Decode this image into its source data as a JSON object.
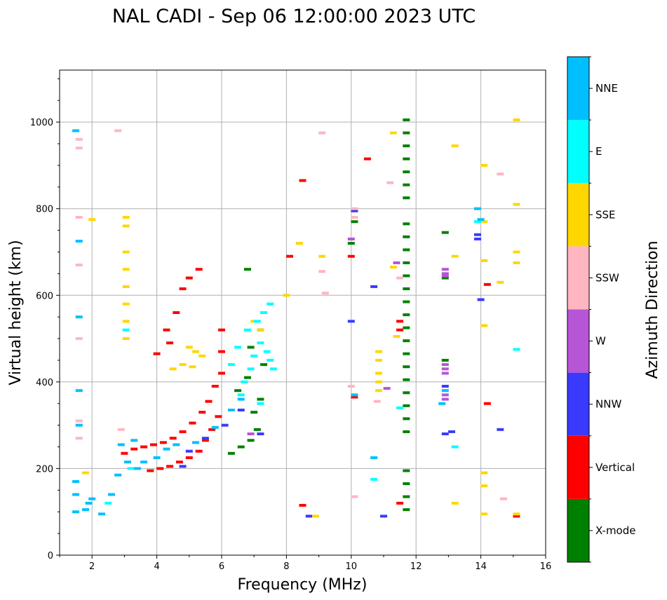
{
  "chart_data": {
    "type": "scatter",
    "title": "NAL CADI - Sep 06 12:00:00 2023 UTC",
    "xlabel": "Frequency (MHz)",
    "ylabel": "Virtual height (km)",
    "xlim": [
      1,
      16
    ],
    "ylim": [
      0,
      1120
    ],
    "xticks": [
      2,
      4,
      6,
      8,
      10,
      12,
      14,
      16
    ],
    "xtick_labels": [
      "2",
      "4",
      "6",
      "8",
      "10",
      "12",
      "14",
      "16"
    ],
    "yticks": [
      0,
      200,
      400,
      600,
      800,
      1000
    ],
    "ytick_labels": [
      "0",
      "200",
      "400",
      "600",
      "800",
      "1000"
    ],
    "grid": true,
    "colorbar": {
      "title": "Azimuth Direction",
      "categories": [
        {
          "name": "X-mode",
          "color": "#008000"
        },
        {
          "name": "Vertical",
          "color": "#ff0000"
        },
        {
          "name": "NNW",
          "color": "#3a3aff"
        },
        {
          "name": "W",
          "color": "#b655d6"
        },
        {
          "name": "SSW",
          "color": "#ffb6c1"
        },
        {
          "name": "SSE",
          "color": "#ffd700"
        },
        {
          "name": "E",
          "color": "#00ffff"
        },
        {
          "name": "NNE",
          "color": "#00bfff"
        }
      ]
    },
    "series": [
      {
        "name": "X-mode",
        "points": [
          [
            6.3,
            235
          ],
          [
            6.6,
            250
          ],
          [
            6.9,
            265
          ],
          [
            7.1,
            290
          ],
          [
            7.0,
            330
          ],
          [
            7.2,
            360
          ],
          [
            6.5,
            380
          ],
          [
            6.8,
            410
          ],
          [
            7.3,
            440
          ],
          [
            6.9,
            480
          ],
          [
            7.2,
            520
          ],
          [
            11.7,
            1005
          ],
          [
            11.7,
            975
          ],
          [
            11.7,
            945
          ],
          [
            11.7,
            915
          ],
          [
            11.7,
            885
          ],
          [
            11.7,
            855
          ],
          [
            11.7,
            825
          ],
          [
            11.7,
            765
          ],
          [
            11.7,
            735
          ],
          [
            11.7,
            705
          ],
          [
            11.7,
            675
          ],
          [
            11.7,
            645
          ],
          [
            11.7,
            615
          ],
          [
            11.7,
            585
          ],
          [
            11.7,
            555
          ],
          [
            11.7,
            525
          ],
          [
            11.7,
            495
          ],
          [
            11.7,
            465
          ],
          [
            11.7,
            435
          ],
          [
            11.7,
            405
          ],
          [
            11.7,
            375
          ],
          [
            11.7,
            345
          ],
          [
            11.7,
            315
          ],
          [
            11.7,
            285
          ],
          [
            11.7,
            195
          ],
          [
            11.7,
            165
          ],
          [
            11.7,
            135
          ],
          [
            11.7,
            105
          ],
          [
            12.9,
            745
          ],
          [
            12.9,
            640
          ],
          [
            12.9,
            450
          ],
          [
            10.0,
            720
          ],
          [
            10.1,
            770
          ],
          [
            6.8,
            660
          ]
        ]
      },
      {
        "name": "Vertical",
        "points": [
          [
            3.0,
            235
          ],
          [
            3.3,
            245
          ],
          [
            3.6,
            250
          ],
          [
            3.9,
            255
          ],
          [
            4.2,
            260
          ],
          [
            4.5,
            270
          ],
          [
            4.8,
            285
          ],
          [
            5.1,
            305
          ],
          [
            5.4,
            330
          ],
          [
            5.6,
            355
          ],
          [
            5.8,
            390
          ],
          [
            6.0,
            420
          ],
          [
            6.0,
            470
          ],
          [
            6.0,
            520
          ],
          [
            3.8,
            195
          ],
          [
            4.1,
            200
          ],
          [
            4.4,
            205
          ],
          [
            4.7,
            215
          ],
          [
            5.0,
            225
          ],
          [
            5.3,
            240
          ],
          [
            5.5,
            265
          ],
          [
            5.7,
            290
          ],
          [
            5.9,
            320
          ],
          [
            4.0,
            465
          ],
          [
            4.4,
            490
          ],
          [
            4.6,
            560
          ],
          [
            4.8,
            615
          ],
          [
            5.0,
            640
          ],
          [
            5.3,
            660
          ],
          [
            4.3,
            520
          ],
          [
            8.1,
            690
          ],
          [
            8.5,
            865
          ],
          [
            10.5,
            915
          ],
          [
            10.0,
            690
          ],
          [
            10.1,
            365
          ],
          [
            11.5,
            540
          ],
          [
            11.5,
            520
          ],
          [
            14.2,
            625
          ],
          [
            14.2,
            350
          ],
          [
            15.1,
            90
          ],
          [
            8.5,
            115
          ],
          [
            11.5,
            120
          ]
        ]
      },
      {
        "name": "NNW",
        "points": [
          [
            5.0,
            240
          ],
          [
            5.5,
            270
          ],
          [
            6.1,
            300
          ],
          [
            6.6,
            335
          ],
          [
            7.2,
            280
          ],
          [
            4.8,
            205
          ],
          [
            12.9,
            280
          ],
          [
            13.1,
            285
          ],
          [
            13.9,
            740
          ],
          [
            13.9,
            730
          ],
          [
            14.0,
            590
          ],
          [
            10.0,
            540
          ],
          [
            10.7,
            620
          ],
          [
            11.0,
            90
          ],
          [
            12.9,
            390
          ],
          [
            14.6,
            290
          ],
          [
            8.7,
            90
          ],
          [
            10.1,
            795
          ]
        ]
      },
      {
        "name": "W",
        "points": [
          [
            12.9,
            660
          ],
          [
            12.9,
            650
          ],
          [
            12.9,
            645
          ],
          [
            12.9,
            440
          ],
          [
            12.9,
            430
          ],
          [
            12.9,
            420
          ],
          [
            12.9,
            370
          ],
          [
            12.9,
            360
          ],
          [
            10.0,
            730
          ],
          [
            11.1,
            385
          ],
          [
            11.4,
            675
          ],
          [
            6.9,
            280
          ]
        ]
      },
      {
        "name": "SSW",
        "points": [
          [
            1.6,
            960
          ],
          [
            1.6,
            940
          ],
          [
            1.6,
            780
          ],
          [
            1.6,
            670
          ],
          [
            1.6,
            500
          ],
          [
            1.6,
            310
          ],
          [
            1.6,
            270
          ],
          [
            2.8,
            980
          ],
          [
            9.1,
            975
          ],
          [
            10.1,
            800
          ],
          [
            10.1,
            780
          ],
          [
            11.2,
            860
          ],
          [
            9.2,
            605
          ],
          [
            9.1,
            655
          ],
          [
            10.0,
            390
          ],
          [
            10.8,
            355
          ],
          [
            14.6,
            880
          ],
          [
            14.7,
            130
          ],
          [
            10.1,
            135
          ],
          [
            2.9,
            290
          ],
          [
            11.5,
            640
          ]
        ]
      },
      {
        "name": "SSE",
        "points": [
          [
            3.05,
            780
          ],
          [
            3.05,
            760
          ],
          [
            3.05,
            700
          ],
          [
            3.05,
            660
          ],
          [
            3.05,
            620
          ],
          [
            3.05,
            580
          ],
          [
            3.05,
            540
          ],
          [
            3.05,
            500
          ],
          [
            4.5,
            430
          ],
          [
            4.8,
            440
          ],
          [
            5.0,
            480
          ],
          [
            5.2,
            470
          ],
          [
            5.4,
            460
          ],
          [
            5.1,
            435
          ],
          [
            7.0,
            540
          ],
          [
            7.2,
            520
          ],
          [
            10.85,
            470
          ],
          [
            10.85,
            450
          ],
          [
            10.85,
            420
          ],
          [
            10.85,
            400
          ],
          [
            10.85,
            380
          ],
          [
            11.3,
            975
          ],
          [
            13.2,
            945
          ],
          [
            14.1,
            900
          ],
          [
            15.1,
            1005
          ],
          [
            15.1,
            810
          ],
          [
            14.1,
            770
          ],
          [
            13.2,
            690
          ],
          [
            15.1,
            700
          ],
          [
            15.1,
            675
          ],
          [
            14.1,
            680
          ],
          [
            14.6,
            630
          ],
          [
            14.1,
            530
          ],
          [
            14.1,
            190
          ],
          [
            14.1,
            160
          ],
          [
            13.2,
            120
          ],
          [
            14.1,
            95
          ],
          [
            15.1,
            95
          ],
          [
            8.0,
            600
          ],
          [
            8.4,
            720
          ],
          [
            9.1,
            690
          ],
          [
            11.3,
            665
          ],
          [
            11.4,
            505
          ],
          [
            2.0,
            775
          ],
          [
            1.8,
            190
          ],
          [
            8.9,
            90
          ]
        ]
      },
      {
        "name": "E",
        "points": [
          [
            6.7,
            400
          ],
          [
            6.9,
            430
          ],
          [
            7.0,
            460
          ],
          [
            7.2,
            490
          ],
          [
            7.4,
            470
          ],
          [
            7.5,
            450
          ],
          [
            7.6,
            430
          ],
          [
            7.5,
            580
          ],
          [
            7.3,
            560
          ],
          [
            7.1,
            540
          ],
          [
            6.8,
            520
          ],
          [
            6.5,
            480
          ],
          [
            6.3,
            440
          ],
          [
            6.6,
            370
          ],
          [
            7.2,
            350
          ],
          [
            3.05,
            520
          ],
          [
            15.1,
            475
          ],
          [
            13.9,
            770
          ],
          [
            13.2,
            250
          ],
          [
            11.5,
            340
          ],
          [
            10.7,
            175
          ],
          [
            2.5,
            120
          ],
          [
            3.2,
            200
          ]
        ]
      },
      {
        "name": "NNE",
        "points": [
          [
            1.5,
            980
          ],
          [
            1.6,
            725
          ],
          [
            1.6,
            550
          ],
          [
            1.6,
            380
          ],
          [
            1.6,
            300
          ],
          [
            1.5,
            170
          ],
          [
            1.5,
            140
          ],
          [
            1.5,
            100
          ],
          [
            1.8,
            105
          ],
          [
            1.9,
            120
          ],
          [
            2.0,
            130
          ],
          [
            2.3,
            95
          ],
          [
            2.6,
            140
          ],
          [
            2.8,
            185
          ],
          [
            3.1,
            215
          ],
          [
            3.4,
            200
          ],
          [
            3.6,
            215
          ],
          [
            2.9,
            255
          ],
          [
            3.3,
            265
          ],
          [
            4.0,
            225
          ],
          [
            4.3,
            245
          ],
          [
            4.6,
            255
          ],
          [
            5.2,
            260
          ],
          [
            5.8,
            295
          ],
          [
            6.3,
            335
          ],
          [
            6.6,
            360
          ],
          [
            12.8,
            350
          ],
          [
            12.9,
            380
          ],
          [
            13.9,
            800
          ],
          [
            14.0,
            775
          ],
          [
            10.1,
            370
          ],
          [
            10.7,
            225
          ]
        ]
      }
    ]
  }
}
